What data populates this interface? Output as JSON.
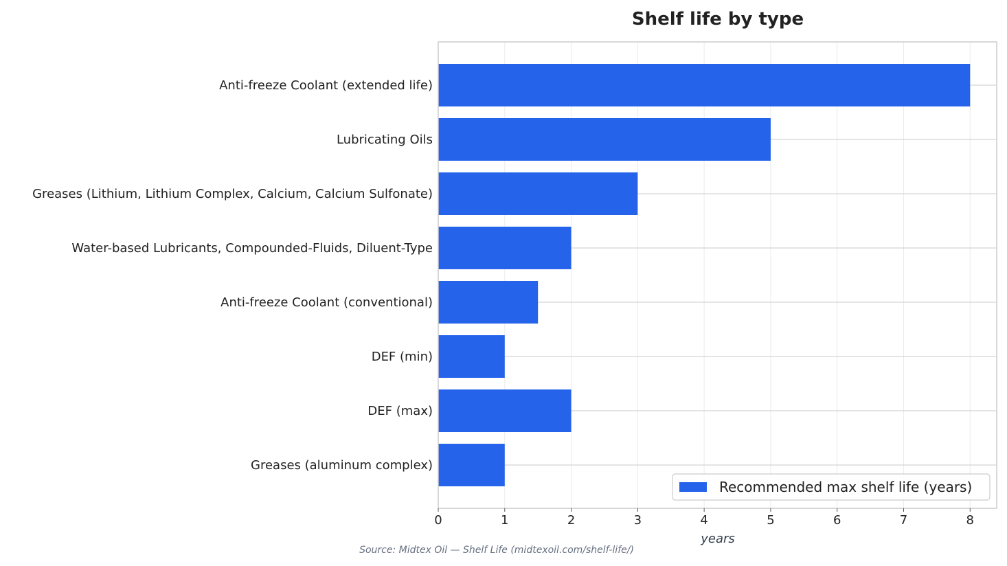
{
  "chart_data": {
    "type": "bar",
    "orientation": "horizontal",
    "title": "Shelf life by type",
    "xlabel": "years",
    "ylabel": "",
    "categories": [
      "Anti-freeze Coolant (extended life)",
      "Lubricating Oils",
      "Greases (Lithium, Lithium Complex, Calcium, Calcium Sulfonate)",
      "Water-based Lubricants, Compounded-Fluids, Diluent-Type",
      "Anti-freeze Coolant (conventional)",
      "DEF (min)",
      "DEF (max)",
      "Greases (aluminum complex)"
    ],
    "series": [
      {
        "name": "Recommended max shelf life (years)",
        "values": [
          8,
          5,
          3,
          2,
          1.5,
          1,
          2,
          1
        ],
        "color": "#2563eb"
      }
    ],
    "xlim": [
      0,
      8.4
    ],
    "xticks": [
      "0",
      "1",
      "2",
      "3",
      "4",
      "5",
      "6",
      "7",
      "8"
    ],
    "grid": true,
    "legend_position": "bottom-right",
    "source_note": "Source: Midtex Oil — Shelf Life (midtexoil.com/shelf-life/)"
  }
}
